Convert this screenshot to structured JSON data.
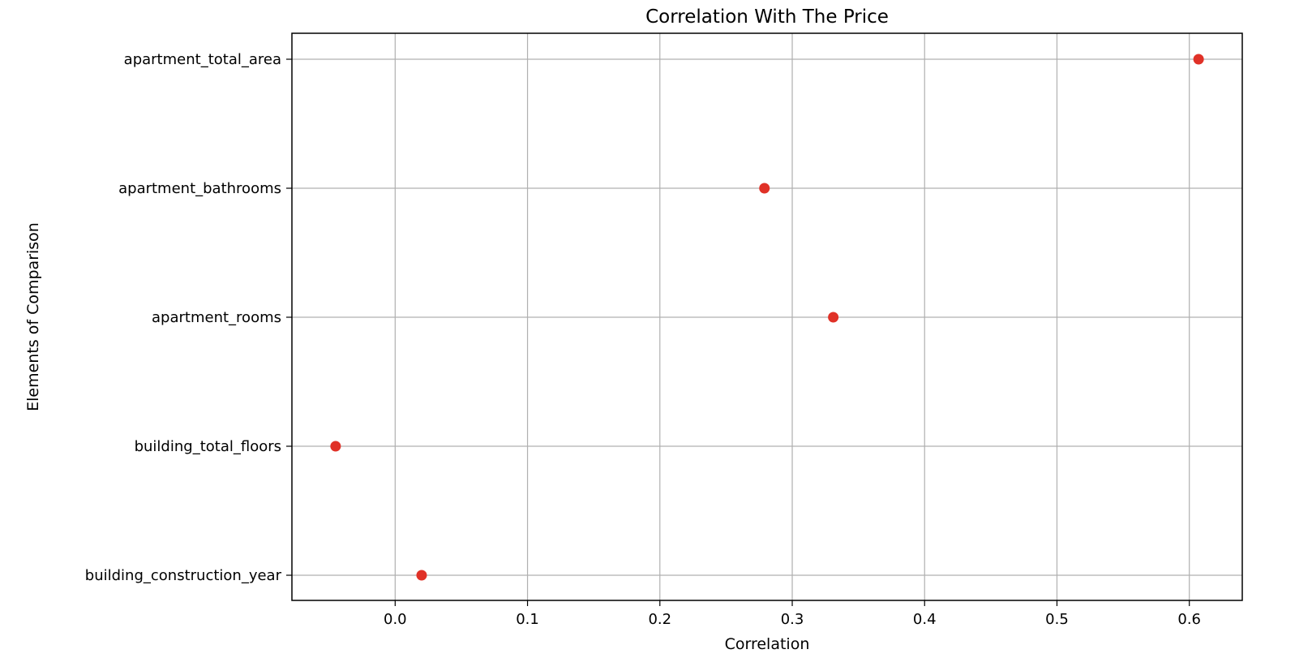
{
  "chart_data": {
    "type": "scatter",
    "title": "Correlation With The Price",
    "xlabel": "Correlation",
    "ylabel": "Elements of Comparison",
    "categories": [
      "apartment_total_area",
      "apartment_bathrooms",
      "apartment_rooms",
      "building_total_floors",
      "building_construction_year"
    ],
    "values": [
      0.607,
      0.279,
      0.331,
      -0.045,
      0.02
    ],
    "xlim": [
      -0.078,
      0.64
    ],
    "xticks": [
      0.0,
      0.1,
      0.2,
      0.3,
      0.4,
      0.5,
      0.6
    ],
    "xtick_labels": [
      "0.0",
      "0.1",
      "0.2",
      "0.3",
      "0.4",
      "0.5",
      "0.6"
    ],
    "grid": true,
    "marker_color": "#e03127"
  }
}
